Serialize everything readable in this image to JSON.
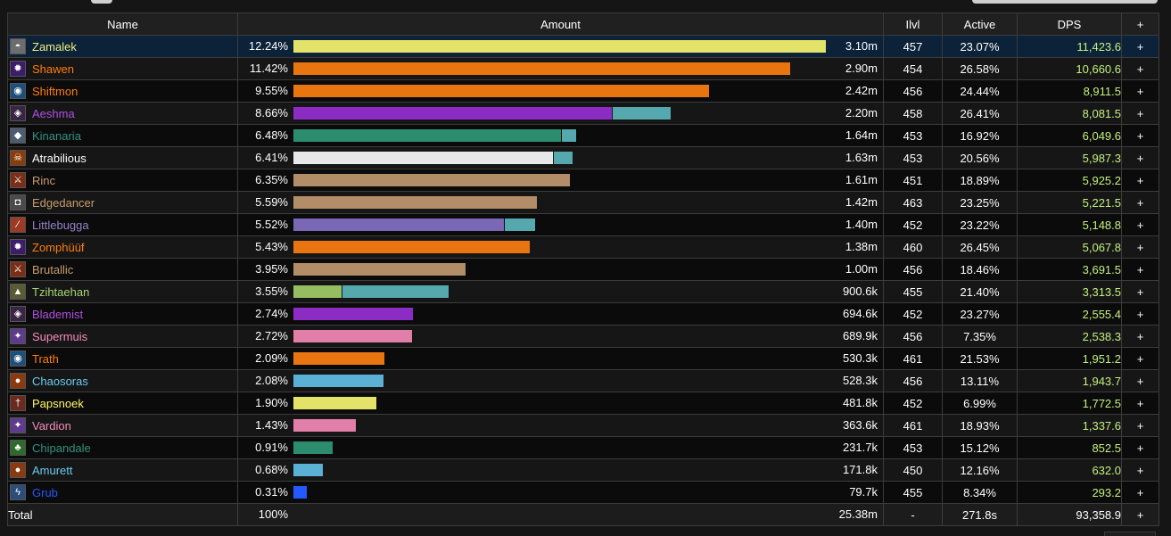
{
  "header": {
    "name": "Name",
    "amount": "Amount",
    "ilvl": "Ilvl",
    "active": "Active",
    "dps": "DPS",
    "plus": "+"
  },
  "players": [
    {
      "name": "Zamalek",
      "pct": "12.24%",
      "amount": "3.10m",
      "ilvl": "457",
      "active": "23.07%",
      "dps": "11,423.6",
      "color": "#f0ec80",
      "icon": "warrior-helmet-icon",
      "selected": true,
      "bars": [
        {
          "share": 12.24,
          "color": "#e3e36a"
        }
      ]
    },
    {
      "name": "Shawen",
      "pct": "11.42%",
      "amount": "2.90m",
      "ilvl": "454",
      "active": "26.58%",
      "dps": "10,660.6",
      "color": "#ff7d0a",
      "icon": "arcane-burst-icon",
      "bars": [
        {
          "share": 11.42,
          "color": "#e87510"
        }
      ]
    },
    {
      "name": "Shiftmon",
      "pct": "9.55%",
      "amount": "2.42m",
      "ilvl": "456",
      "active": "24.44%",
      "dps": "8,911.5",
      "color": "#ff7d0a",
      "icon": "cat-form-icon",
      "bars": [
        {
          "share": 9.55,
          "color": "#e87510"
        }
      ]
    },
    {
      "name": "Aeshma",
      "pct": "8.66%",
      "amount": "2.20m",
      "ilvl": "458",
      "active": "26.41%",
      "dps": "8,081.5",
      "color": "#b04fe0",
      "icon": "demon-mask-icon",
      "bars": [
        {
          "share": 7.32,
          "color": "#8c2cc4"
        },
        {
          "share": 1.34,
          "color": "#55a8ad"
        }
      ]
    },
    {
      "name": "Kinanaria",
      "pct": "6.48%",
      "amount": "1.64m",
      "ilvl": "453",
      "active": "16.92%",
      "dps": "6,049.6",
      "color": "#33937f",
      "icon": "monk-wolf-icon",
      "bars": [
        {
          "share": 6.16,
          "color": "#2b8c6e"
        },
        {
          "share": 0.32,
          "color": "#55a8ad"
        }
      ]
    },
    {
      "name": "Atrabilious",
      "pct": "6.41%",
      "amount": "1.63m",
      "ilvl": "453",
      "active": "20.56%",
      "dps": "5,987.3",
      "color": "#ffffff",
      "icon": "skull-flame-icon",
      "bars": [
        {
          "share": 5.97,
          "color": "#e8e8e8"
        },
        {
          "share": 0.44,
          "color": "#55a8ad"
        }
      ]
    },
    {
      "name": "Rinc",
      "pct": "6.35%",
      "amount": "1.61m",
      "ilvl": "451",
      "active": "18.89%",
      "dps": "5,925.2",
      "color": "#c79c6e",
      "icon": "warrior-rage-icon",
      "bars": [
        {
          "share": 6.35,
          "color": "#b38d67"
        }
      ]
    },
    {
      "name": "Edgedancer",
      "pct": "5.59%",
      "amount": "1.42m",
      "ilvl": "463",
      "active": "23.25%",
      "dps": "5,221.5",
      "color": "#c79c6e",
      "icon": "shield-icon",
      "bars": [
        {
          "share": 5.59,
          "color": "#b38d67"
        }
      ]
    },
    {
      "name": "Littlebugga",
      "pct": "5.52%",
      "amount": "1.40m",
      "ilvl": "452",
      "active": "23.22%",
      "dps": "5,148.8",
      "color": "#9482c9",
      "icon": "claw-slash-icon",
      "bars": [
        {
          "share": 4.83,
          "color": "#7b68b5"
        },
        {
          "share": 0.69,
          "color": "#55a8ad"
        }
      ]
    },
    {
      "name": "Zomphüüf",
      "pct": "5.43%",
      "amount": "1.38m",
      "ilvl": "460",
      "active": "26.45%",
      "dps": "5,067.8",
      "color": "#ff7d0a",
      "icon": "arcane-burst-icon",
      "bars": [
        {
          "share": 5.43,
          "color": "#e87510"
        }
      ]
    },
    {
      "name": "Brutallic",
      "pct": "3.95%",
      "amount": "1.00m",
      "ilvl": "456",
      "active": "18.46%",
      "dps": "3,691.5",
      "color": "#c79c6e",
      "icon": "warrior-rage-icon",
      "bars": [
        {
          "share": 3.95,
          "color": "#b38d67"
        }
      ]
    },
    {
      "name": "Tzihtaehan",
      "pct": "3.55%",
      "amount": "900.6k",
      "ilvl": "455",
      "active": "21.40%",
      "dps": "3,313.5",
      "color": "#abd473",
      "icon": "hunter-beast-icon",
      "bars": [
        {
          "share": 1.1,
          "color": "#96bd60"
        },
        {
          "share": 2.45,
          "color": "#55a8ad"
        }
      ]
    },
    {
      "name": "Blademist",
      "pct": "2.74%",
      "amount": "694.6k",
      "ilvl": "452",
      "active": "23.27%",
      "dps": "2,555.4",
      "color": "#b04fe0",
      "icon": "demon-mask-icon",
      "bars": [
        {
          "share": 2.74,
          "color": "#8c2cc4"
        }
      ]
    },
    {
      "name": "Supermuis",
      "pct": "2.72%",
      "amount": "689.9k",
      "ilvl": "456",
      "active": "7.35%",
      "dps": "2,538.3",
      "color": "#f58cba",
      "icon": "holy-light-icon",
      "bars": [
        {
          "share": 2.72,
          "color": "#e27fa8"
        }
      ]
    },
    {
      "name": "Trath",
      "pct": "2.09%",
      "amount": "530.3k",
      "ilvl": "461",
      "active": "21.53%",
      "dps": "1,951.2",
      "color": "#ff7d0a",
      "icon": "cat-form-icon",
      "bars": [
        {
          "share": 2.09,
          "color": "#e87510"
        }
      ]
    },
    {
      "name": "Chaosoras",
      "pct": "2.08%",
      "amount": "528.3k",
      "ilvl": "456",
      "active": "13.11%",
      "dps": "1,943.7",
      "color": "#69ccf0",
      "icon": "fireball-icon",
      "bars": [
        {
          "share": 2.08,
          "color": "#5bb0d5"
        }
      ]
    },
    {
      "name": "Papsnoek",
      "pct": "1.90%",
      "amount": "481.8k",
      "ilvl": "452",
      "active": "6.99%",
      "dps": "1,772.5",
      "color": "#fff569",
      "icon": "rogue-dagger-icon",
      "bars": [
        {
          "share": 1.9,
          "color": "#e3e36a"
        }
      ]
    },
    {
      "name": "Vardion",
      "pct": "1.43%",
      "amount": "363.6k",
      "ilvl": "461",
      "active": "18.93%",
      "dps": "1,337.6",
      "color": "#f58cba",
      "icon": "holy-light-icon",
      "bars": [
        {
          "share": 1.43,
          "color": "#e27fa8"
        }
      ]
    },
    {
      "name": "Chipandale",
      "pct": "0.91%",
      "amount": "231.7k",
      "ilvl": "453",
      "active": "15.12%",
      "dps": "852.5",
      "color": "#33937f",
      "icon": "nature-leaf-icon",
      "bars": [
        {
          "share": 0.91,
          "color": "#2b8c6e"
        }
      ]
    },
    {
      "name": "Amurett",
      "pct": "0.68%",
      "amount": "171.8k",
      "ilvl": "450",
      "active": "12.16%",
      "dps": "632.0",
      "color": "#69ccf0",
      "icon": "fireball-icon",
      "bars": [
        {
          "share": 0.68,
          "color": "#5bb0d5"
        }
      ]
    },
    {
      "name": "Grub",
      "pct": "0.31%",
      "amount": "79.7k",
      "ilvl": "455",
      "active": "8.34%",
      "dps": "293.2",
      "color": "#2459ff",
      "icon": "lightning-icon",
      "bars": [
        {
          "share": 0.31,
          "color": "#2459ff"
        }
      ]
    }
  ],
  "total": {
    "label": "Total",
    "pct": "100%",
    "amount": "25.38m",
    "ilvl": "-",
    "active": "271.8s",
    "dps": "93,358.9",
    "plus": "+"
  }
}
